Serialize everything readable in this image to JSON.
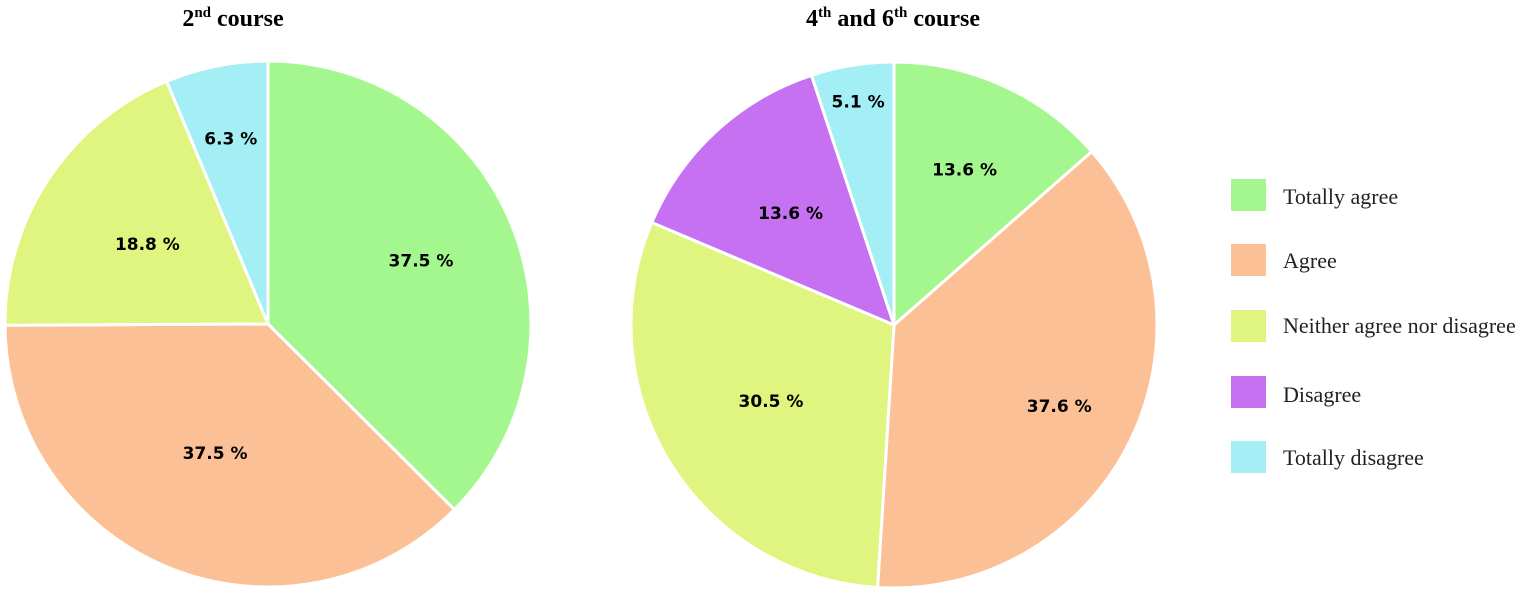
{
  "legend": {
    "items": [
      {
        "label": "Totally agree",
        "color": "#a3f78e"
      },
      {
        "label": "Agree",
        "color": "#fcc097"
      },
      {
        "label": "Neither agree nor disagree",
        "color": "#dff57f"
      },
      {
        "label": "Disagree",
        "color": "#c671f2"
      },
      {
        "label": "Totally disagree",
        "color": "#a3eff5"
      }
    ]
  },
  "chart_data": [
    {
      "type": "pie",
      "title": {
        "base": "2",
        "sup": "nd",
        "rest": " course"
      },
      "categories": [
        "Totally agree",
        "Agree",
        "Neither agree nor disagree",
        "Totally disagree"
      ],
      "values": [
        37.5,
        37.5,
        18.8,
        6.3
      ],
      "labels": [
        "37.5 %",
        "37.5 %",
        "18.8 %",
        "6.3 %"
      ],
      "colors": [
        "#a3f78e",
        "#fcc097",
        "#dff57f",
        "#a3eff5"
      ]
    },
    {
      "type": "pie",
      "title": {
        "base": "4",
        "sup": "th",
        "mid": " and 6",
        "sup2": "th",
        "rest": " course"
      },
      "categories": [
        "Totally agree",
        "Agree",
        "Neither agree nor disagree",
        "Disagree",
        "Totally disagree"
      ],
      "values": [
        13.6,
        37.6,
        30.5,
        13.6,
        5.1
      ],
      "labels": [
        "13.6 %",
        "37.6 %",
        "30.5 %",
        "13.6 %",
        "5.1 %"
      ],
      "colors": [
        "#a3f78e",
        "#fcc097",
        "#dff57f",
        "#c671f2",
        "#a3eff5"
      ]
    }
  ]
}
